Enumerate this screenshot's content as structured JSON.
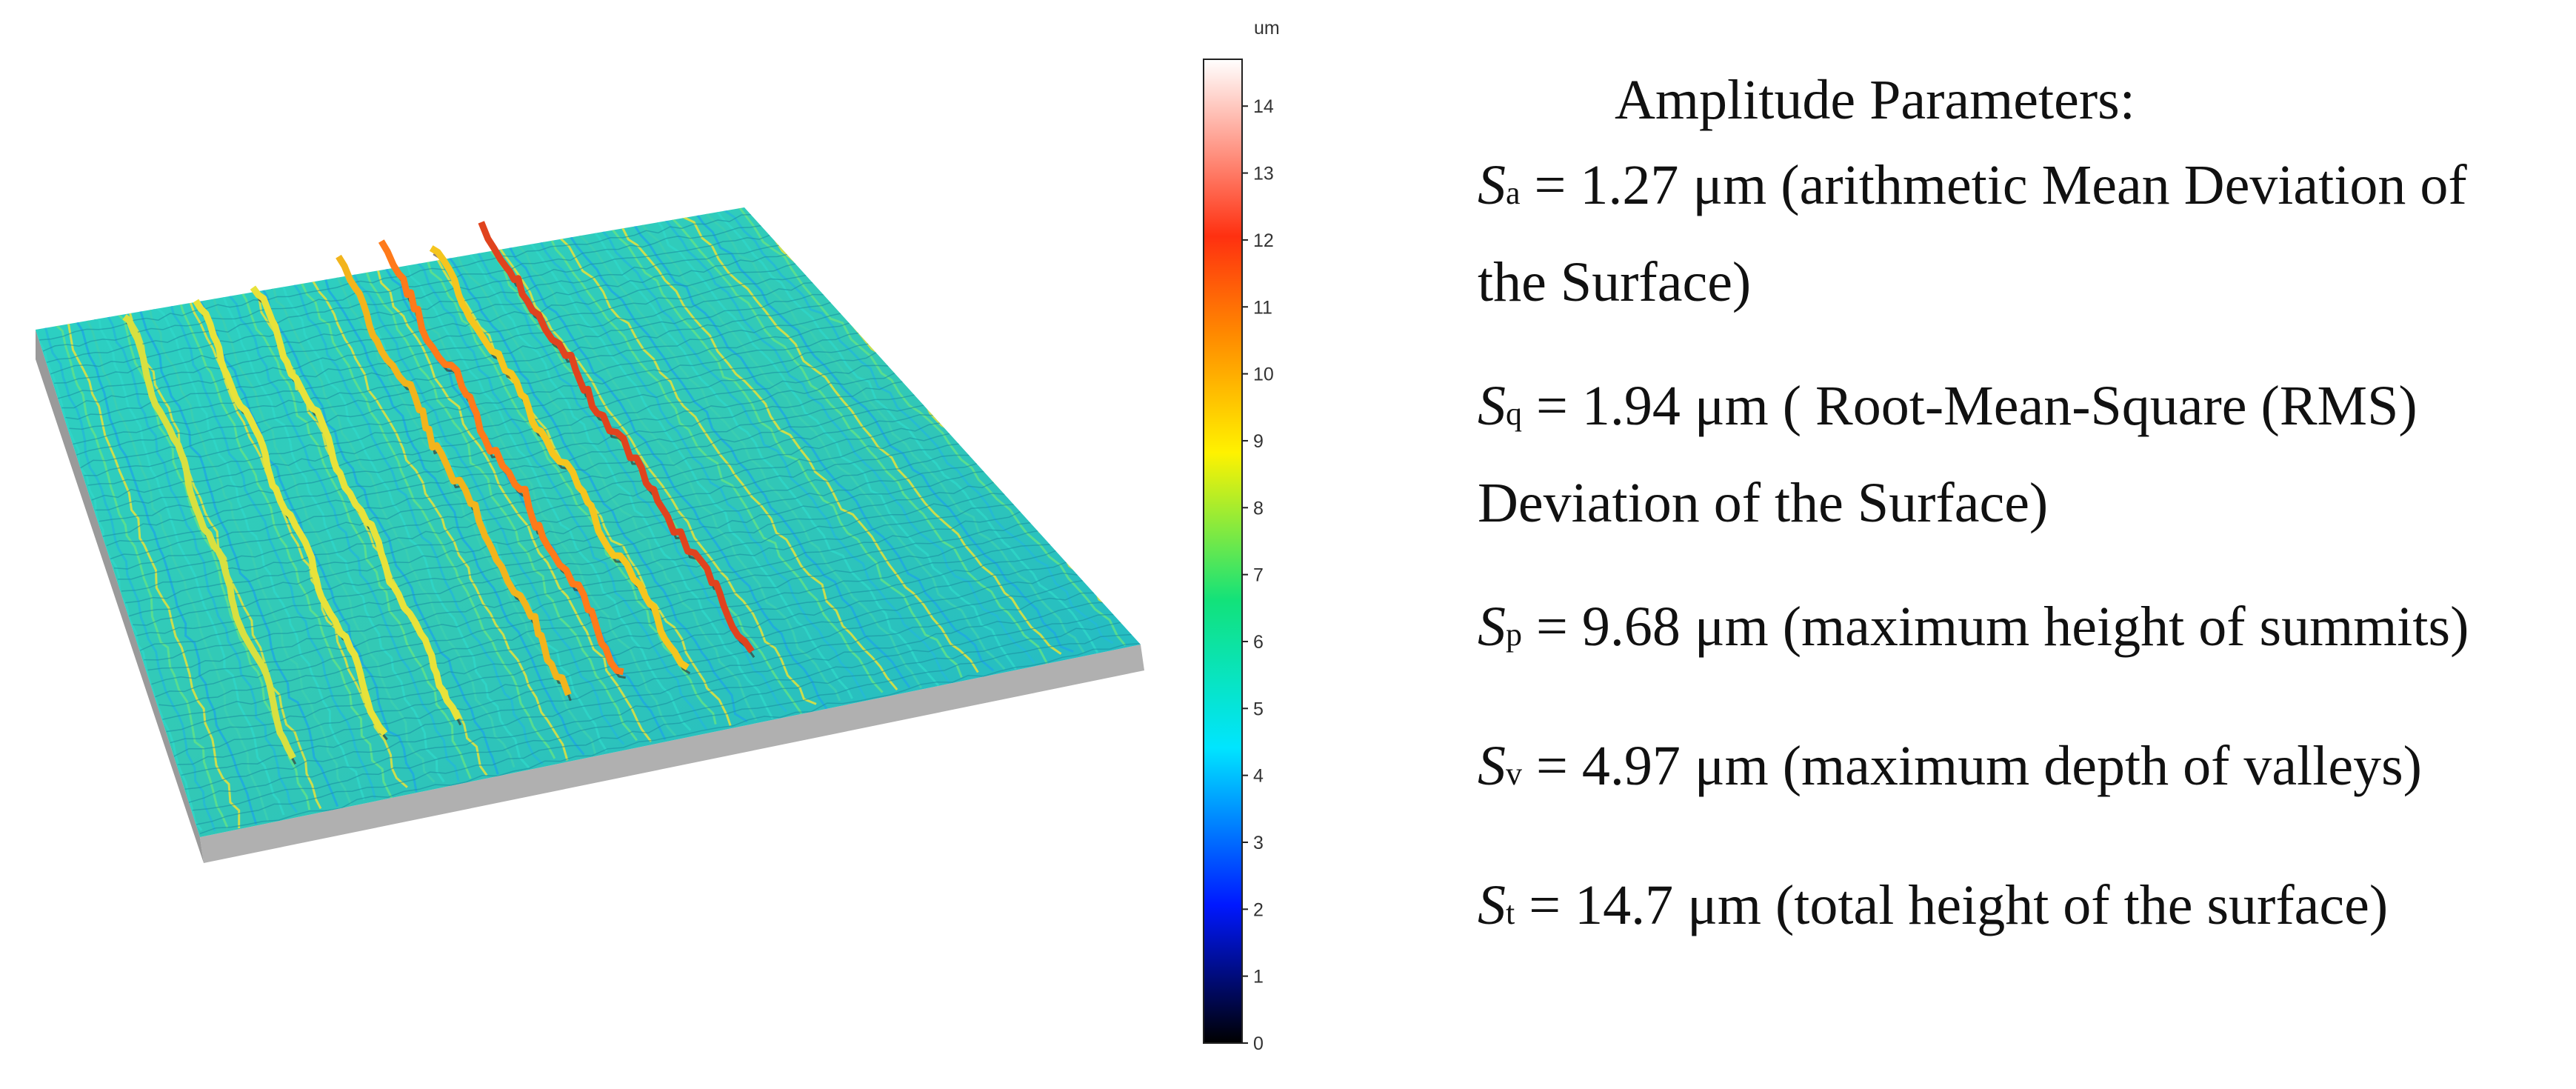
{
  "colorbar": {
    "unit": "um",
    "min": 0,
    "max": 14.7,
    "ticks": [
      "0",
      "1",
      "2",
      "3",
      "4",
      "5",
      "6",
      "7",
      "8",
      "9",
      "10",
      "11",
      "12",
      "13",
      "14"
    ],
    "colors": {
      "low": "#000000",
      "blue": "#0018ff",
      "cyan": "#00e5ff",
      "green": "#12e27a",
      "yellow": "#fff200",
      "orange": "#ff8a00",
      "red": "#ff3010",
      "high": "#ffffff"
    }
  },
  "surface": {
    "base_color": "#a8a8a8",
    "mesh_color": "#27c7c0",
    "ridge_color": "#e0431e"
  },
  "params": {
    "heading": "Amplitude Parameters:",
    "sa": {
      "symbol": "S",
      "sub": "a",
      "text": " = 1.27 μm (arithmetic Mean Deviation of",
      "cont": "the Surface)"
    },
    "sq": {
      "symbol": "S",
      "sub": "q",
      "text": " = 1.94 μm ( Root-Mean-Square (RMS)",
      "cont": "Deviation of the Surface)"
    },
    "sp": {
      "symbol": "S",
      "sub": "p",
      "text": " = 9.68 μm (maximum height of summits)"
    },
    "sv": {
      "symbol": "S",
      "sub": "v",
      "text": " = 4.97 μm (maximum depth of valleys)"
    },
    "st": {
      "symbol": "S",
      "sub": "t",
      "text": " = 14.7 μm (total height of the surface)"
    }
  }
}
